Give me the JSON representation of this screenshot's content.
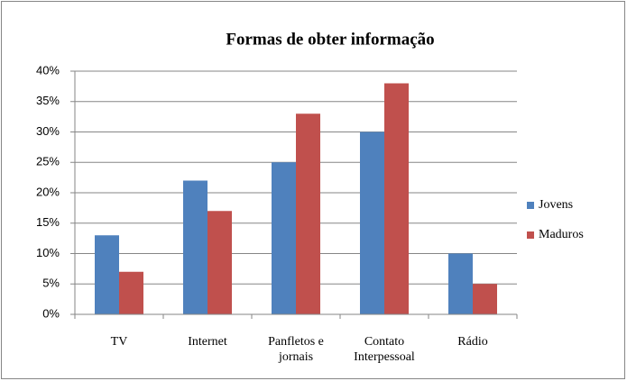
{
  "chart_data": {
    "type": "bar",
    "title": "Formas de obter informação",
    "categories": [
      "TV",
      "Internet",
      "Panfletos e jornais",
      "Contato Interpessoal",
      "Rádio"
    ],
    "series": [
      {
        "name": "Jovens",
        "color": "#4f81bd",
        "values": [
          13,
          22,
          25,
          30,
          10
        ]
      },
      {
        "name": "Maduros",
        "color": "#c0504d",
        "values": [
          7,
          17,
          33,
          38,
          5
        ]
      }
    ],
    "ylim": [
      0,
      40
    ],
    "yticks": [
      {
        "value": 0,
        "label": "0%"
      },
      {
        "value": 5,
        "label": "5%"
      },
      {
        "value": 10,
        "label": "10%"
      },
      {
        "value": 15,
        "label": "15%"
      },
      {
        "value": 20,
        "label": "20%"
      },
      {
        "value": 25,
        "label": "25%"
      },
      {
        "value": 30,
        "label": "30%"
      },
      {
        "value": 35,
        "label": "35%"
      },
      {
        "value": 40,
        "label": "40%"
      }
    ],
    "grid": true,
    "legend": "right"
  }
}
